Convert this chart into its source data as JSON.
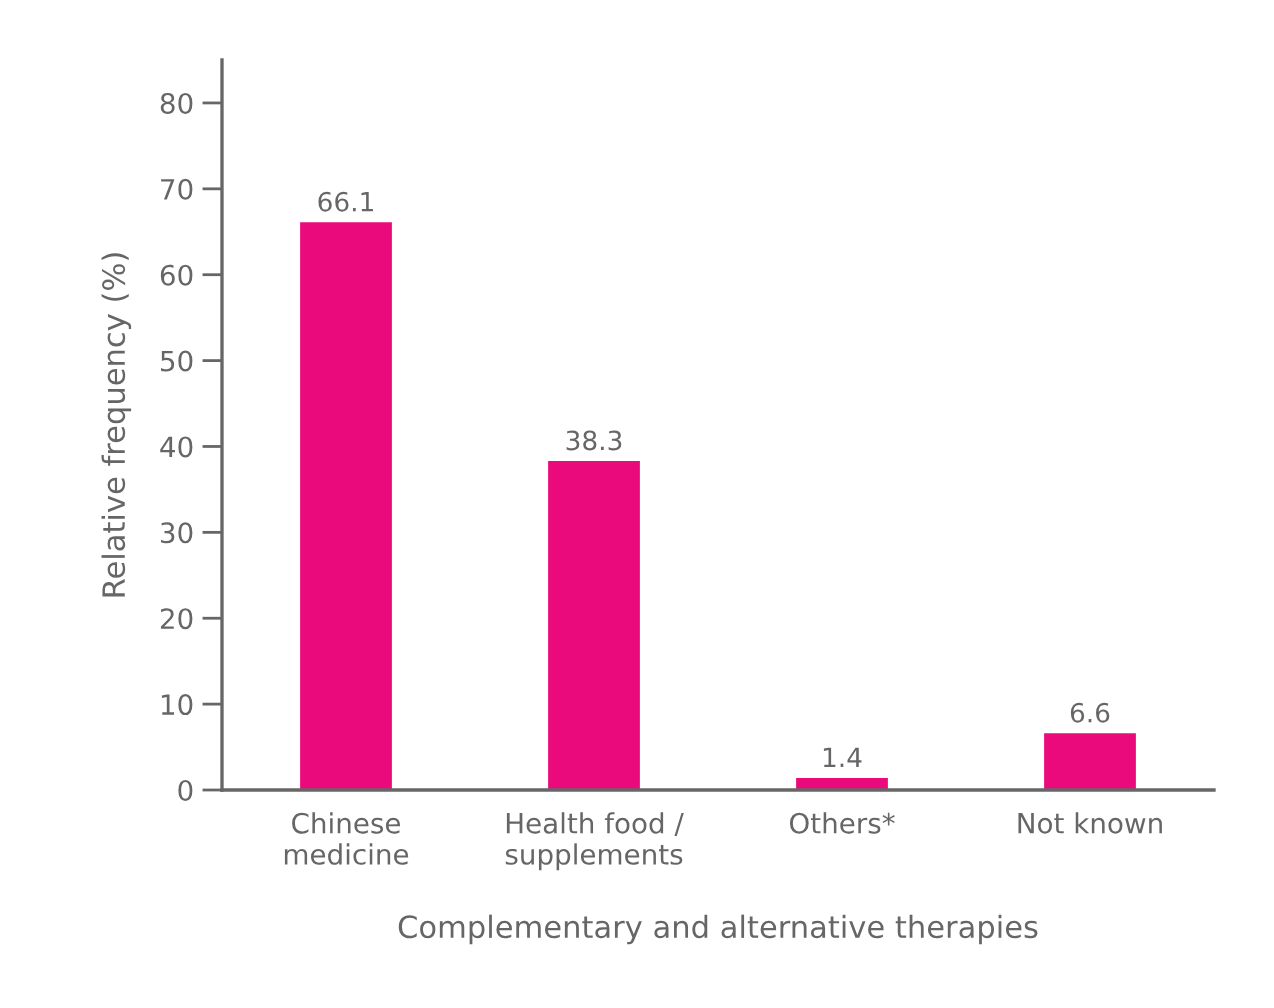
{
  "chart_data": {
    "type": "bar",
    "xlabel": "Complementary and alternative therapies",
    "ylabel": "Relative frequency (%)",
    "categories": [
      "Chinese\nmedicine",
      "Health food /\nsupplements",
      "Others*",
      "Not known"
    ],
    "values": [
      66.1,
      38.3,
      1.4,
      6.6
    ],
    "color": "#ea0a7c",
    "ylim": [
      0,
      85
    ],
    "yticks": [
      0,
      10,
      20,
      30,
      40,
      50,
      60,
      70,
      80
    ],
    "data_labels": true,
    "grid": false,
    "legend": false
  }
}
